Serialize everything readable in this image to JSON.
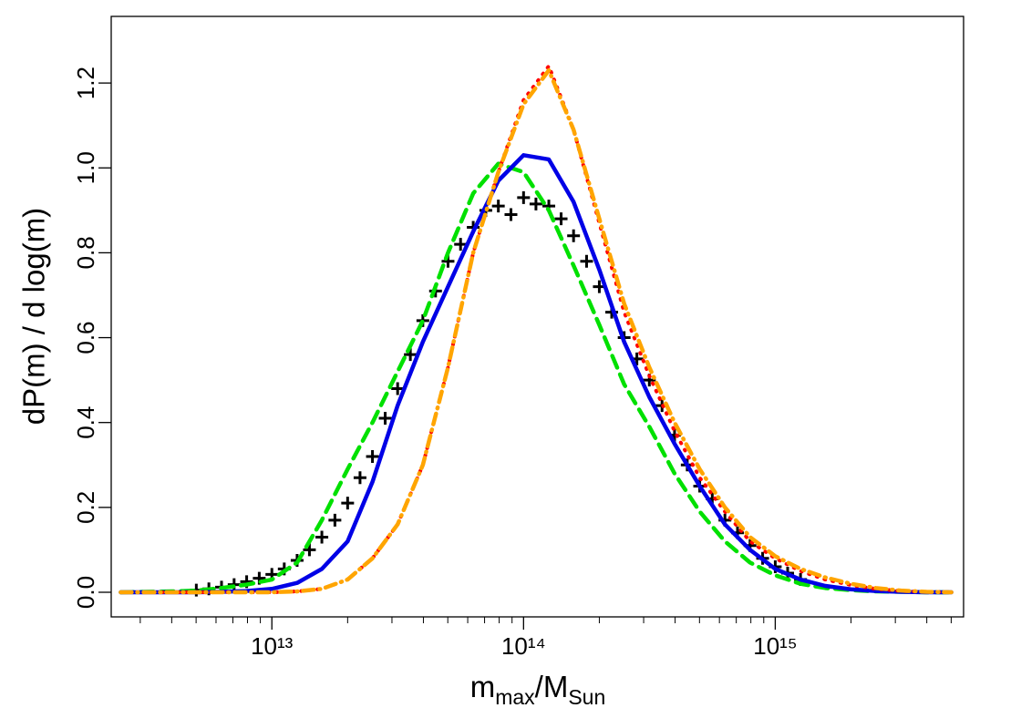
{
  "chart_data": {
    "type": "line",
    "xscale": "log",
    "xlabel": [
      "m",
      "max",
      "/",
      "M",
      "Sun"
    ],
    "ylabel": "dP(m) / d log(m)",
    "xlim": [
      2300000000000.0,
      5600000000000000.0
    ],
    "ylim": [
      -0.058,
      1.357
    ],
    "xticks": [
      {
        "value": 10000000000000.0,
        "label": "10¹³"
      },
      {
        "value": 100000000000000.0,
        "label": "10¹⁴"
      },
      {
        "value": 1000000000000000.0,
        "label": "10¹⁵"
      }
    ],
    "xminorticks": [
      3000000000000.0,
      4000000000000.0,
      5000000000000.0,
      6000000000000.0,
      7000000000000.0,
      8000000000000.0,
      9000000000000.0,
      20000000000000.0,
      30000000000000.0,
      40000000000000.0,
      50000000000000.0,
      60000000000000.0,
      70000000000000.0,
      80000000000000.0,
      90000000000000.0,
      200000000000000.0,
      300000000000000.0,
      400000000000000.0,
      500000000000000.0,
      600000000000000.0,
      700000000000000.0,
      800000000000000.0,
      900000000000000.0,
      2000000000000000.0,
      3000000000000000.0,
      4000000000000000.0,
      5000000000000000.0
    ],
    "yticks": [
      {
        "value": 0,
        "label": "0.0"
      },
      0.2,
      0.4,
      0.6,
      0.8,
      {
        "value": 1,
        "label": "1.0"
      },
      1.2
    ],
    "series": [
      {
        "color": "#000000",
        "style": "plus",
        "x": [
          5010000000000.0,
          5620000000000.0,
          6310000000000.0,
          7080000000000.0,
          7940000000000.0,
          8910000000000.0,
          10000000000000.0,
          11200000000000.0,
          12600000000000.0,
          14100000000000.0,
          15800000000000.0,
          17800000000000.0,
          20000000000000.0,
          22400000000000.0,
          25100000000000.0,
          28200000000000.0,
          31600000000000.0,
          35500000000000.0,
          39800000000000.0,
          44700000000000.0,
          50100000000000.0,
          56200000000000.0,
          63100000000000.0,
          70800000000000.0,
          79400000000000.0,
          89100000000000.0,
          100000000000000.0,
          112000000000000.0,
          126000000000000.0,
          141000000000000.0,
          158000000000000.0,
          178000000000000.0,
          200000000000000.0,
          224000000000000.0,
          251000000000000.0,
          282000000000000.0,
          316000000000000.0,
          355000000000000.0,
          398000000000000.0,
          447000000000000.0,
          501000000000000.0,
          562000000000000.0,
          631000000000000.0,
          708000000000000.0,
          794000000000000.0,
          891000000000000.0,
          1000000000000000.0,
          1120000000000000.0,
          1260000000000000.0
        ],
        "values": [
          0.005,
          0.008,
          0.012,
          0.018,
          0.025,
          0.033,
          0.042,
          0.055,
          0.075,
          0.1,
          0.13,
          0.17,
          0.21,
          0.27,
          0.32,
          0.41,
          0.48,
          0.56,
          0.64,
          0.71,
          0.78,
          0.82,
          0.86,
          0.9,
          0.91,
          0.89,
          0.93,
          0.915,
          0.91,
          0.88,
          0.84,
          0.78,
          0.72,
          0.66,
          0.6,
          0.55,
          0.5,
          0.44,
          0.37,
          0.3,
          0.25,
          0.22,
          0.17,
          0.14,
          0.11,
          0.08,
          0.06,
          0.045,
          0.03
        ]
      },
      {
        "color": "#00e000",
        "style": "dashed",
        "x": [
          2510000000000.0,
          3160000000000.0,
          3980000000000.0,
          5010000000000.0,
          6310000000000.0,
          7940000000000.0,
          10000000000000.0,
          12600000000000.0,
          15800000000000.0,
          20000000000000.0,
          25100000000000.0,
          31600000000000.0,
          39800000000000.0,
          50100000000000.0,
          63100000000000.0,
          79400000000000.0,
          100000000000000.0,
          126000000000000.0,
          158000000000000.0,
          200000000000000.0,
          251000000000000.0,
          316000000000000.0,
          398000000000000.0,
          501000000000000.0,
          631000000000000.0,
          794000000000000.0,
          1000000000000000.0,
          1260000000000000.0,
          1580000000000000.0,
          2000000000000000.0,
          2510000000000000.0,
          3160000000000000.0,
          3980000000000000.0,
          5010000000000000.0
        ],
        "values": [
          0,
          0.001,
          0.002,
          0.004,
          0.01,
          0.018,
          0.03,
          0.07,
          0.17,
          0.29,
          0.4,
          0.52,
          0.64,
          0.8,
          0.94,
          1.01,
          0.99,
          0.9,
          0.77,
          0.63,
          0.49,
          0.39,
          0.28,
          0.19,
          0.12,
          0.07,
          0.04,
          0.02,
          0.01,
          0.005,
          0.002,
          0.001,
          0,
          0
        ]
      },
      {
        "color": "#0000e6",
        "style": "solid",
        "x": [
          2510000000000.0,
          3160000000000.0,
          3980000000000.0,
          5010000000000.0,
          6310000000000.0,
          7940000000000.0,
          10000000000000.0,
          12600000000000.0,
          15800000000000.0,
          20000000000000.0,
          25100000000000.0,
          31600000000000.0,
          39800000000000.0,
          50100000000000.0,
          63100000000000.0,
          79400000000000.0,
          100000000000000.0,
          126000000000000.0,
          158000000000000.0,
          200000000000000.0,
          251000000000000.0,
          316000000000000.0,
          398000000000000.0,
          501000000000000.0,
          631000000000000.0,
          794000000000000.0,
          1000000000000000.0,
          1260000000000000.0,
          1580000000000000.0,
          2000000000000000.0,
          2510000000000000.0,
          3160000000000000.0,
          3980000000000000.0,
          5010000000000000.0
        ],
        "values": [
          0,
          0,
          0,
          0,
          0.001,
          0.003,
          0.008,
          0.022,
          0.055,
          0.12,
          0.26,
          0.44,
          0.59,
          0.72,
          0.85,
          0.97,
          1.03,
          1.02,
          0.92,
          0.76,
          0.59,
          0.46,
          0.35,
          0.25,
          0.16,
          0.1,
          0.055,
          0.03,
          0.015,
          0.007,
          0.003,
          0.001,
          0,
          0
        ]
      },
      {
        "color": "#ff0000",
        "style": "dotted",
        "x": [
          2510000000000.0,
          3160000000000.0,
          3980000000000.0,
          5010000000000.0,
          6310000000000.0,
          7940000000000.0,
          10000000000000.0,
          12600000000000.0,
          15800000000000.0,
          20000000000000.0,
          25100000000000.0,
          31600000000000.0,
          39800000000000.0,
          50100000000000.0,
          63100000000000.0,
          79400000000000.0,
          100000000000000.0,
          126000000000000.0,
          158000000000000.0,
          200000000000000.0,
          251000000000000.0,
          316000000000000.0,
          398000000000000.0,
          501000000000000.0,
          631000000000000.0,
          794000000000000.0,
          1000000000000000.0,
          1260000000000000.0,
          1580000000000000.0,
          2000000000000000.0,
          2510000000000000.0,
          3160000000000000.0,
          3980000000000000.0,
          5010000000000000.0
        ],
        "values": [
          0,
          0,
          0,
          0,
          0,
          0,
          0,
          0.002,
          0.008,
          0.03,
          0.08,
          0.16,
          0.3,
          0.53,
          0.8,
          0.99,
          1.16,
          1.24,
          1.09,
          0.87,
          0.66,
          0.51,
          0.38,
          0.27,
          0.19,
          0.12,
          0.08,
          0.05,
          0.03,
          0.017,
          0.008,
          0.003,
          0.001,
          0
        ]
      },
      {
        "color": "#ffa500",
        "style": "dashdot",
        "x": [
          2510000000000.0,
          3160000000000.0,
          3980000000000.0,
          5010000000000.0,
          6310000000000.0,
          7940000000000.0,
          10000000000000.0,
          12600000000000.0,
          15800000000000.0,
          20000000000000.0,
          25100000000000.0,
          31600000000000.0,
          39800000000000.0,
          50100000000000.0,
          63100000000000.0,
          79400000000000.0,
          100000000000000.0,
          126000000000000.0,
          158000000000000.0,
          200000000000000.0,
          251000000000000.0,
          316000000000000.0,
          398000000000000.0,
          501000000000000.0,
          631000000000000.0,
          794000000000000.0,
          1000000000000000.0,
          1260000000000000.0,
          1580000000000000.0,
          2000000000000000.0,
          2510000000000000.0,
          3160000000000000.0,
          3980000000000000.0,
          5010000000000000.0
        ],
        "values": [
          0,
          0,
          0,
          0,
          0,
          0,
          0,
          0.002,
          0.008,
          0.03,
          0.08,
          0.16,
          0.3,
          0.53,
          0.8,
          0.99,
          1.15,
          1.23,
          1.09,
          0.88,
          0.68,
          0.53,
          0.4,
          0.29,
          0.2,
          0.13,
          0.085,
          0.055,
          0.035,
          0.02,
          0.01,
          0.004,
          0.001,
          0
        ]
      }
    ]
  }
}
